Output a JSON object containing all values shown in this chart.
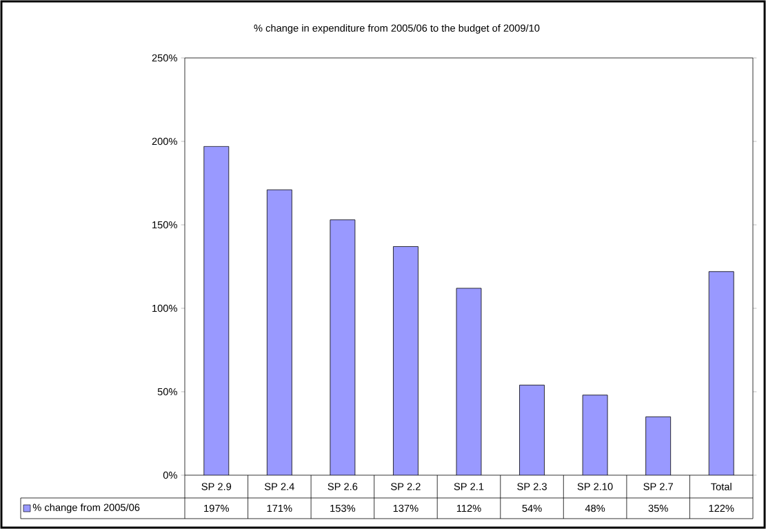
{
  "chart_data": {
    "type": "bar",
    "title": "% change in expenditure from 2005/06 to the budget of 2009/10",
    "categories": [
      "SP 2.9",
      "SP 2.4",
      "SP 2.6",
      "SP 2.2",
      "SP 2.1",
      "SP 2.3",
      "SP 2.10",
      "SP 2.7",
      "Total"
    ],
    "series": [
      {
        "name": "% change from 2005/06",
        "color": "#9999ff",
        "values": [
          197,
          171,
          153,
          137,
          112,
          54,
          48,
          35,
          122
        ],
        "value_labels": [
          "197%",
          "171%",
          "153%",
          "137%",
          "112%",
          "54%",
          "48%",
          "35%",
          "122%"
        ]
      }
    ],
    "ylim": [
      0,
      250
    ],
    "yticks": [
      {
        "value": 0,
        "label": "0%"
      },
      {
        "value": 50,
        "label": "50%"
      },
      {
        "value": 100,
        "label": "100%"
      },
      {
        "value": 150,
        "label": "150%"
      },
      {
        "value": 200,
        "label": "200%"
      },
      {
        "value": 250,
        "label": "250%"
      }
    ],
    "grid": false,
    "legend": "bottom"
  }
}
